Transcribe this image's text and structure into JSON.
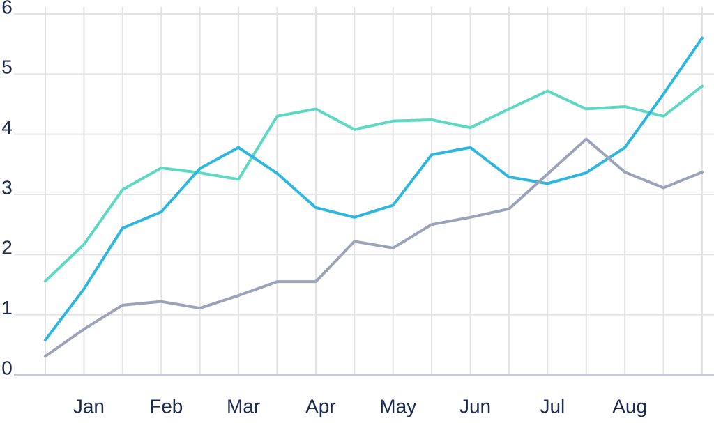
{
  "chart_data": {
    "type": "line",
    "categories": [
      null,
      "Jan",
      null,
      "Feb",
      null,
      "Mar",
      null,
      "Apr",
      null,
      "May",
      null,
      "Jun",
      null,
      "Jul",
      null,
      "Aug",
      null,
      null
    ],
    "series": [
      {
        "color": "#5dd8c2",
        "values": [
          1.56,
          2.17,
          3.08,
          3.44,
          3.36,
          3.25,
          4.3,
          4.42,
          4.08,
          4.22,
          4.24,
          4.11,
          4.42,
          4.72,
          4.42,
          4.46,
          4.3,
          4.8
        ]
      },
      {
        "color": "#2cb6e0",
        "values": [
          0.58,
          1.43,
          2.44,
          2.71,
          3.43,
          3.78,
          3.35,
          2.78,
          2.62,
          2.82,
          3.66,
          3.78,
          3.29,
          3.18,
          3.36,
          3.78,
          4.67,
          5.6
        ]
      },
      {
        "color": "#9ba3b9",
        "values": [
          0.31,
          0.76,
          1.16,
          1.22,
          1.11,
          1.32,
          1.55,
          1.55,
          2.22,
          2.11,
          2.5,
          2.62,
          2.76,
          3.34,
          3.92,
          3.37,
          3.11,
          3.37
        ]
      }
    ],
    "ylim": [
      0,
      6
    ],
    "yticks": [
      0,
      1,
      2,
      3,
      4,
      5,
      6
    ],
    "grid": true
  }
}
